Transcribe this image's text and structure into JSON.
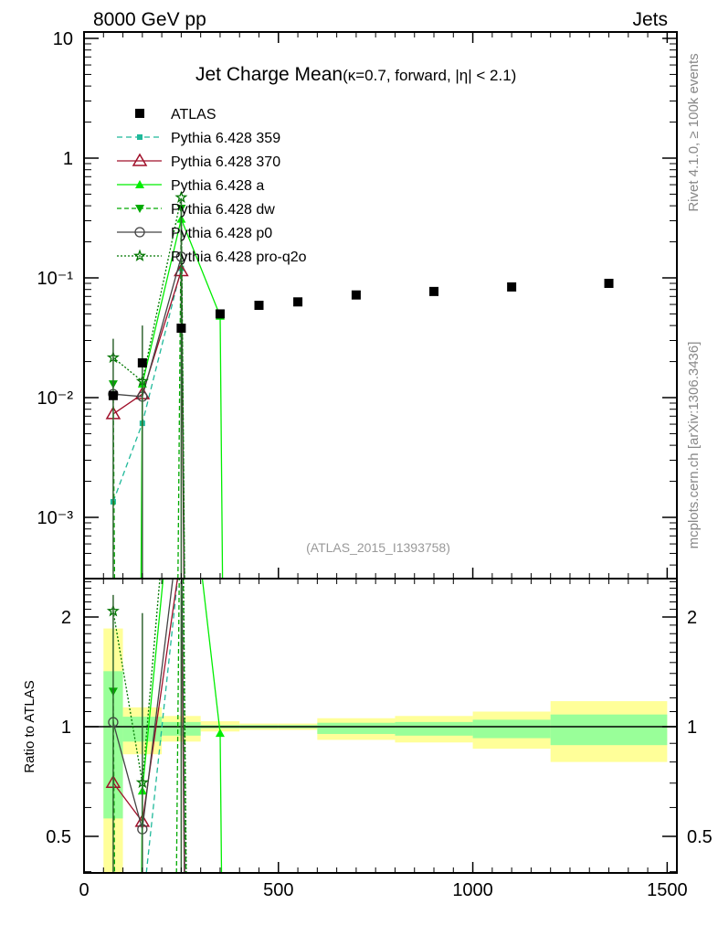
{
  "header": {
    "left": "8000 GeV pp",
    "right": "Jets"
  },
  "side_text": {
    "rivet": "Rivet 4.1.0, ≥ 100k events",
    "mcplots": "mcplots.cern.ch [arXiv:1306.3436]"
  },
  "chart_data": {
    "type": "line",
    "title": "Jet Charge Mean",
    "subtitle": "(κ=0.7, forward, |η| < 2.1)",
    "analysis_label": "(ATLAS_2015_I1393758)",
    "xlabel": "",
    "ylabel": "",
    "ratio_ylabel": "Ratio to ATLAS",
    "xlim": [
      0,
      1525
    ],
    "ylim": [
      0.00031,
      11.3
    ],
    "yscale": "log",
    "ratio_ylim": [
      0.4,
      2.55
    ],
    "x_ticks": [
      "0",
      "500",
      "1000",
      "1500"
    ],
    "x_tick_values": [
      0,
      500,
      1000,
      1500
    ],
    "y_ticks": [
      "10",
      "1",
      "10⁻¹",
      "10⁻²",
      "10⁻³"
    ],
    "y_tick_values": [
      10,
      1,
      0.1,
      0.01,
      0.001
    ],
    "ratio_ticks": [
      "2",
      "1",
      "0.5"
    ],
    "ratio_tick_values": [
      2,
      1,
      0.5
    ],
    "legend_position": "top-left",
    "x": [
      75,
      150,
      250,
      350,
      450,
      550,
      700,
      900,
      1100,
      1350
    ],
    "bin_edges": [
      50,
      100,
      200,
      300,
      400,
      500,
      600,
      800,
      1000,
      1200,
      1500
    ],
    "reference": {
      "name": "ATLAS",
      "values": [
        0.0104,
        0.0195,
        0.038,
        0.05,
        0.059,
        0.063,
        0.072,
        0.077,
        0.084,
        0.09
      ],
      "ratio_stat_band": [
        [
          0.56,
          1.42
        ],
        [
          0.91,
          1.065
        ],
        [
          0.945,
          1.03
        ],
        [
          0.99,
          1.01
        ],
        [
          0.99,
          1.01
        ],
        [
          0.99,
          1.01
        ],
        [
          0.955,
          1.025
        ],
        [
          0.945,
          1.03
        ],
        [
          0.93,
          1.045
        ],
        [
          0.89,
          1.08
        ]
      ],
      "ratio_total_band": [
        [
          0.3,
          1.86
        ],
        [
          0.84,
          1.13
        ],
        [
          0.91,
          1.07
        ],
        [
          0.97,
          1.035
        ],
        [
          0.98,
          1.02
        ],
        [
          0.98,
          1.02
        ],
        [
          0.92,
          1.055
        ],
        [
          0.905,
          1.07
        ],
        [
          0.87,
          1.1
        ],
        [
          0.8,
          1.175
        ]
      ],
      "color": "#000000"
    },
    "series": [
      {
        "name": "Pythia 6.428 359",
        "color": "#1fb99a",
        "dash": "6,4",
        "marker": "square",
        "values": [
          0.00135,
          0.0061,
          0.12,
          null,
          null,
          null,
          null,
          null,
          null,
          null
        ]
      },
      {
        "name": "Pythia 6.428 370",
        "color": "#a0102a",
        "dash": "",
        "marker": "open-triangle",
        "values": [
          0.0073,
          0.0107,
          0.114,
          null,
          null,
          null,
          null,
          null,
          null,
          null
        ]
      },
      {
        "name": "Pythia 6.428 a",
        "color": "#00ee00",
        "dash": "",
        "marker": "triangle",
        "values": [
          null,
          0.013,
          0.31,
          0.048,
          null,
          null,
          null,
          null,
          null,
          null
        ]
      },
      {
        "name": "Pythia 6.428 dw",
        "color": "#00aa00",
        "dash": "5,3",
        "marker": "triangle-down",
        "values": [
          0.013,
          null,
          0.38,
          null,
          null,
          null,
          null,
          null,
          null,
          null
        ]
      },
      {
        "name": "Pythia 6.428 p0",
        "color": "#444444",
        "dash": "",
        "marker": "open-circle",
        "values": [
          0.0107,
          0.0102,
          0.15,
          null,
          null,
          null,
          null,
          null,
          null,
          null
        ]
      },
      {
        "name": "Pythia 6.428 pro-q2o",
        "color": "#007700",
        "dash": "2,2",
        "marker": "open-star",
        "values": [
          0.0216,
          0.0137,
          0.47,
          null,
          null,
          null,
          null,
          null,
          null,
          null
        ]
      }
    ],
    "colors": {
      "stat_band": "#99ff99",
      "total_band": "#ffff99"
    }
  }
}
